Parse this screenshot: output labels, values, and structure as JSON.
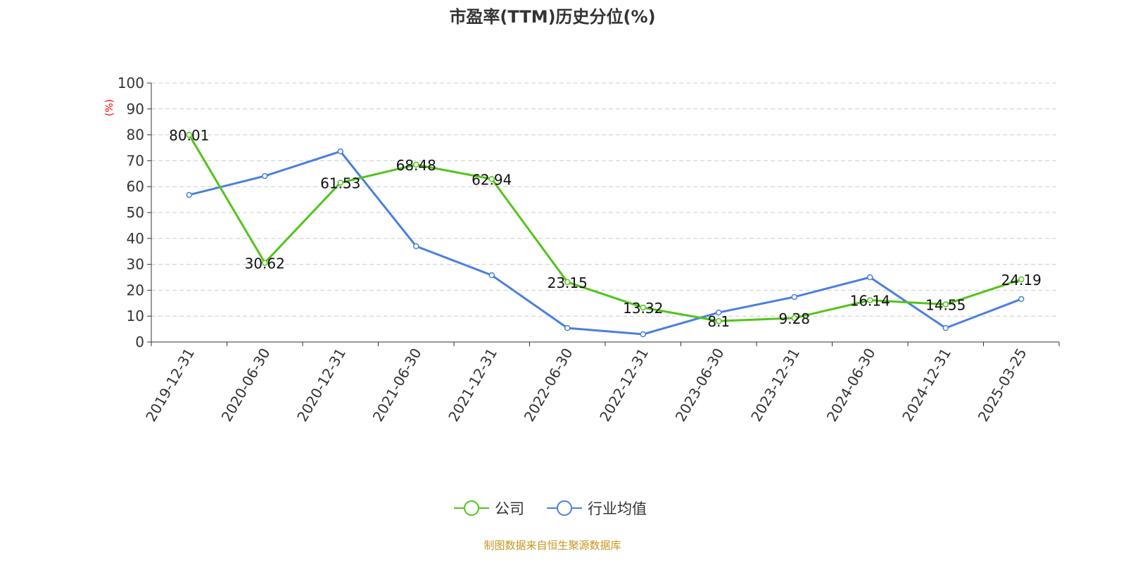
{
  "chart_data": {
    "type": "line",
    "title": "市盈率(TTM)历史分位(%)",
    "ylabel": "(%)",
    "ylim": [
      0,
      100
    ],
    "yticks": [
      0,
      10,
      20,
      30,
      40,
      50,
      60,
      70,
      80,
      90,
      100
    ],
    "grid": true,
    "legend_placement": "bottom",
    "categories": [
      "2019-12-31",
      "2020-06-30",
      "2020-12-31",
      "2021-06-30",
      "2021-12-31",
      "2022-06-30",
      "2022-12-31",
      "2023-06-30",
      "2023-12-31",
      "2024-06-30",
      "2024-12-31",
      "2025-03-25"
    ],
    "series": [
      {
        "name": "公司",
        "color": "#52c41a",
        "labels": true,
        "values": [
          80.01,
          30.62,
          61.53,
          68.48,
          62.94,
          23.15,
          13.32,
          8.1,
          9.28,
          16.14,
          14.55,
          24.19
        ]
      },
      {
        "name": "行业均值",
        "color": "#4a7fe0",
        "labels": false,
        "values": [
          56.8,
          64.1,
          73.6,
          37.0,
          25.8,
          5.4,
          3.0,
          11.4,
          17.4,
          25.0,
          5.4,
          16.6
        ]
      }
    ]
  },
  "footer": {
    "source": "制图数据来自恒生聚源数据库",
    "source_color": "#c8961e"
  },
  "ylabel_color": "#ff0000"
}
